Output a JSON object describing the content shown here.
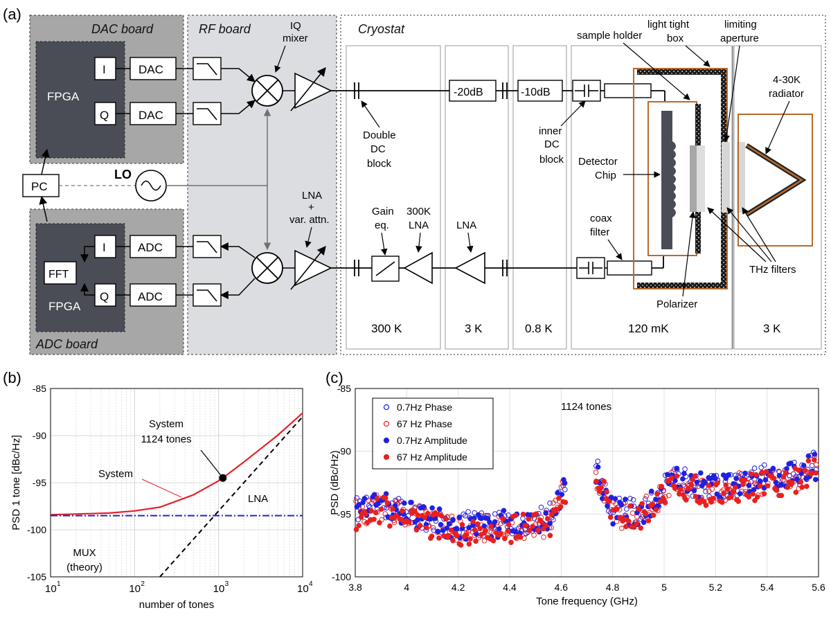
{
  "panel_labels": {
    "a": "(a)",
    "b": "(b)",
    "c": "(c)"
  },
  "diagram": {
    "dac_board": "DAC board",
    "adc_board": "ADC board",
    "rf_board": "RF board",
    "cryostat": "Cryostat",
    "fpga": "FPGA",
    "i": "I",
    "q": "Q",
    "dac": "DAC",
    "adc": "ADC",
    "fft": "FFT",
    "pc": "PC",
    "lo": "LO",
    "iq_mixer": [
      "IQ",
      "mixer"
    ],
    "lna_var": [
      "LNA",
      "+",
      "var. attn."
    ],
    "double_dc_block": [
      "Double",
      "DC",
      "block"
    ],
    "att_20": "-20dB",
    "att_10": "-10dB",
    "inner_dc_block": [
      "inner",
      "DC",
      "block"
    ],
    "sample_holder": "sample holder",
    "light_tight_box": [
      "light tight",
      "box"
    ],
    "limiting_aperture": [
      "limiting",
      "aperture"
    ],
    "radiator": [
      "4-30K",
      "radiator"
    ],
    "detector_chip": [
      "Detector",
      "Chip"
    ],
    "gain_eq": [
      "Gain",
      "eq."
    ],
    "lna_300k": [
      "300K",
      "LNA"
    ],
    "lna": "LNA",
    "coax_filter": [
      "coax",
      "filter"
    ],
    "thz_filters": "THz filters",
    "polarizer": "Polarizer",
    "stages": [
      "300 K",
      "3 K",
      "0.8 K",
      "120 mK",
      "3 K"
    ]
  },
  "chart_data": [
    {
      "type": "line",
      "panel": "b",
      "xscale": "log",
      "xlim": [
        10,
        10000
      ],
      "ylim": [
        -105,
        -85
      ],
      "xlabel": "number of tones",
      "ylabel": "PSD 1 tone [dBc/Hz]",
      "xticks": [
        "10",
        "10",
        "10",
        "10"
      ],
      "xtick_exponents": [
        "1",
        "2",
        "3",
        "4"
      ],
      "yticks": [
        "-85",
        "-90",
        "-95",
        "-100",
        "-105"
      ],
      "series": [
        {
          "name": "System",
          "color": "#e8202a",
          "x": [
            10,
            20,
            50,
            100,
            200,
            500,
            1000,
            1124,
            2000,
            5000,
            10000
          ],
          "y": [
            -98.4,
            -98.33,
            -98.23,
            -98.0,
            -97.6,
            -96.3,
            -94.8,
            -94.5,
            -92.8,
            -90.0,
            -87.6
          ]
        },
        {
          "name": "LNA",
          "color": "#2020d0",
          "x": [
            10,
            10000
          ],
          "y": [
            -98.5,
            -98.5
          ]
        },
        {
          "name": "MUX (theory)",
          "color": "#000000",
          "x": [
            200,
            10000
          ],
          "y": [
            -105,
            -88.0
          ]
        }
      ],
      "marker": {
        "label": [
          "System",
          "1124 tones"
        ],
        "x": 1124,
        "y": -94.5
      },
      "annotations": {
        "system": "System",
        "lna": "LNA",
        "mux": [
          "MUX",
          "(theory)"
        ]
      }
    },
    {
      "type": "scatter",
      "panel": "c",
      "title": "1124 tones",
      "xlim": [
        3.8,
        5.6
      ],
      "ylim": [
        -100,
        -85
      ],
      "xlabel": "Tone frequency  (GHz)",
      "ylabel": "PSD  (dBc/Hz)",
      "xticks": [
        "3.8",
        "4",
        "4.2",
        "4.4",
        "4.6",
        "4.8",
        "5",
        "5.2",
        "5.4",
        "5.6"
      ],
      "yticks": [
        "-85",
        "-90",
        "-95",
        "-100"
      ],
      "legend": [
        "0.7Hz Phase",
        "67 Hz Phase",
        "0.7Hz Amplitude",
        "67 Hz Amplitude"
      ],
      "legend_position": "top-left",
      "series": [
        {
          "name": "0.7Hz Phase",
          "color": "#2020e0",
          "filled": false,
          "offset": 0.6,
          "seed": 11
        },
        {
          "name": "67 Hz Phase",
          "color": "#e82020",
          "filled": false,
          "offset": 0.1,
          "seed": 23
        },
        {
          "name": "0.7Hz Amplitude",
          "color": "#2020e0",
          "filled": true,
          "offset": 0.4,
          "seed": 37
        },
        {
          "name": "67 Hz Amplitude",
          "color": "#e82020",
          "filled": true,
          "offset": -0.3,
          "seed": 53
        }
      ],
      "trend": {
        "x": [
          3.8,
          3.9,
          4.0,
          4.2,
          4.4,
          4.55,
          4.61,
          4.74,
          4.8,
          4.9,
          5.05,
          5.1,
          5.2,
          5.4,
          5.5,
          5.58
        ],
        "y": [
          -95.0,
          -94.5,
          -95.2,
          -96.3,
          -96.0,
          -95.8,
          -93.0,
          -92.0,
          -95.0,
          -95.3,
          -92.3,
          -92.8,
          -93.2,
          -92.5,
          -92.2,
          -91.5
        ]
      },
      "gaps": [
        [
          4.62,
          4.73
        ]
      ]
    }
  ]
}
